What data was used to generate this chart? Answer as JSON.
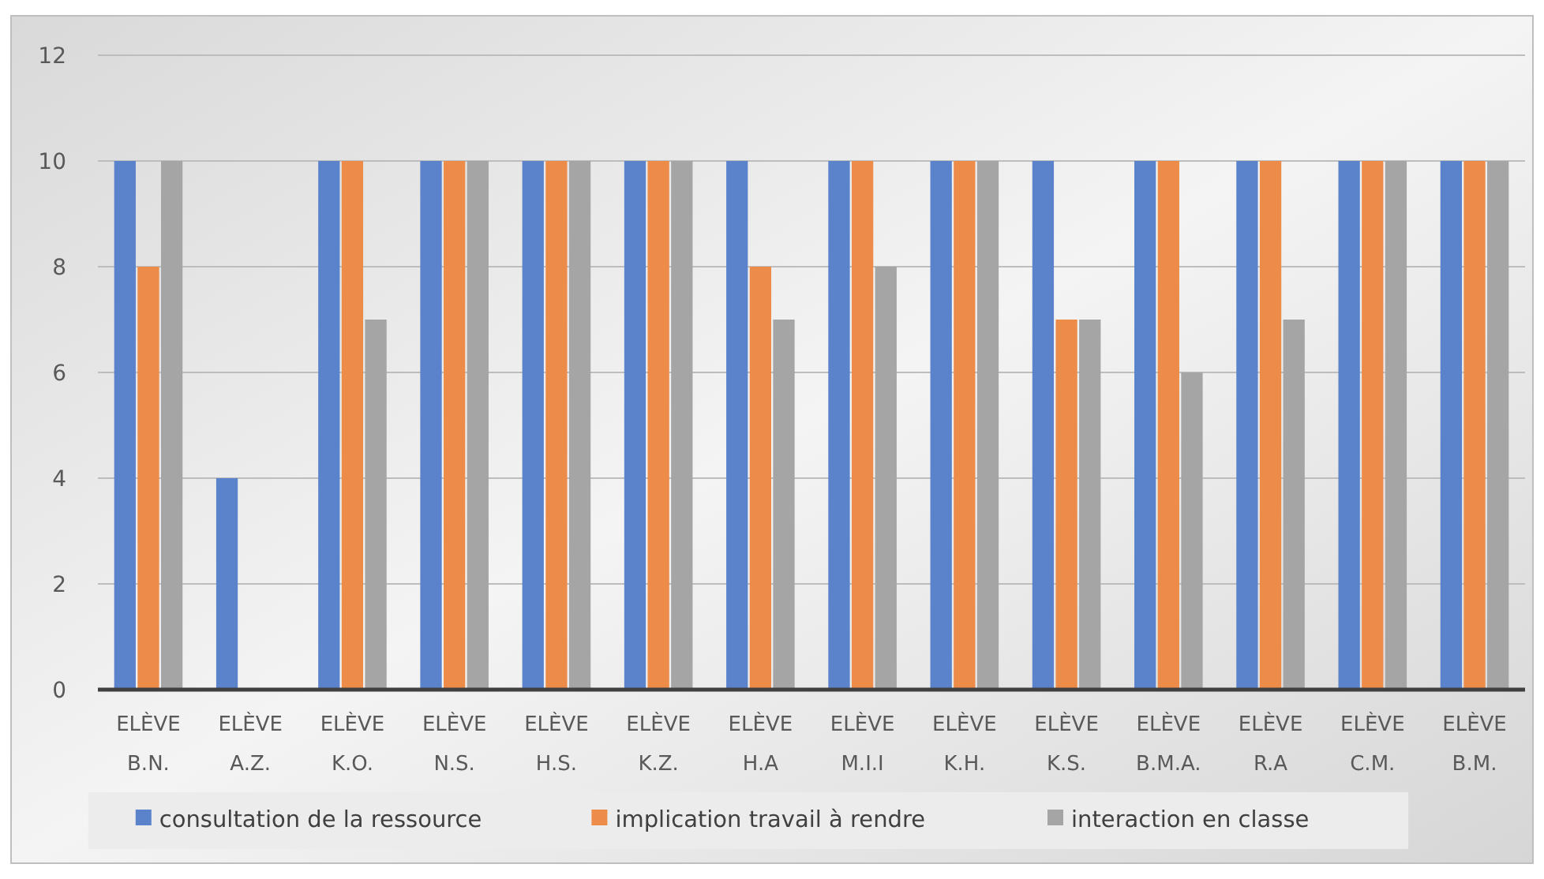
{
  "chart_data": {
    "type": "bar",
    "categories": [
      "ELÈVE B.N.",
      "ELÈVE A.Z.",
      "ELÈVE K.O.",
      "ELÈVE N.S.",
      "ELÈVE H.S.",
      "ELÈVE K.Z.",
      "ELÈVE H.A",
      "ELÈVE M.I.I",
      "ELÈVE K.H.",
      "ELÈVE K.S.",
      "ELÈVE B.M.A.",
      "ELÈVE R.A",
      "ELÈVE C.M.",
      "ELÈVE B.M."
    ],
    "series": [
      {
        "name": "consultation de la ressource",
        "color": "#5b83cc",
        "values": [
          10,
          4,
          10,
          10,
          10,
          10,
          10,
          10,
          10,
          10,
          10,
          10,
          10,
          10
        ]
      },
      {
        "name": "implication travail à rendre",
        "color": "#ed8c48",
        "values": [
          8,
          0,
          10,
          10,
          10,
          10,
          8,
          10,
          10,
          7,
          10,
          10,
          10,
          10
        ]
      },
      {
        "name": "interaction en classe",
        "color": "#a5a5a5",
        "values": [
          10,
          0,
          7,
          10,
          10,
          10,
          7,
          8,
          10,
          7,
          6,
          7,
          10,
          10
        ]
      }
    ],
    "ylim": [
      0,
      12
    ],
    "yticks": [
      0,
      2,
      4,
      6,
      8,
      10,
      12
    ],
    "grid": "y",
    "legend": "bottom"
  }
}
